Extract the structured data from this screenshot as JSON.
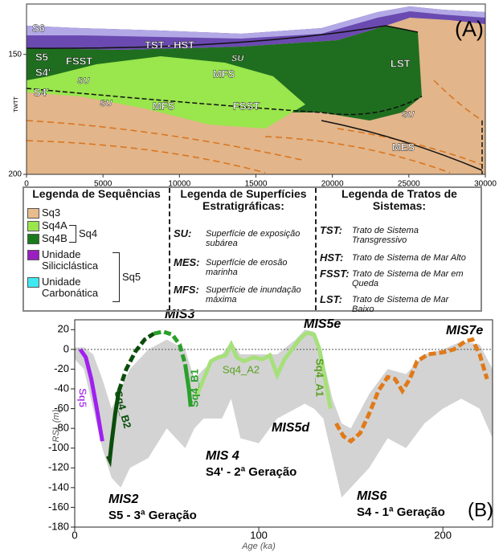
{
  "chart_data": [
    {
      "type": "section",
      "panel_label": "(A)",
      "y_label": "TWTT",
      "xlim": [
        0,
        30000
      ],
      "xticks": [
        0,
        5000,
        10000,
        15000,
        20000,
        25000,
        30000
      ],
      "ylim": [
        200,
        129
      ],
      "yticks": [
        150,
        200
      ],
      "annotations": [
        "S6",
        "TST - HST",
        "S5",
        "FSST",
        "SU",
        "S4'",
        "MFS",
        "SU",
        "LST",
        "S4'",
        "SU",
        "MFS",
        "FSST",
        "SU",
        "MES"
      ]
    },
    {
      "type": "line",
      "panel_label": "(B)",
      "x_label": "Age (ka)",
      "y_label": "RSL (m)",
      "xlim": [
        0,
        227
      ],
      "xticks": [
        0,
        100,
        200
      ],
      "ylim": [
        -180,
        30
      ],
      "yticks": [
        -180,
        -160,
        -140,
        -120,
        -100,
        -80,
        -60,
        -40,
        -20,
        0,
        20
      ],
      "zero_line": true,
      "envelope": {
        "color": "#d3d3d3",
        "x": [
          0,
          5,
          10,
          15,
          20,
          25,
          30,
          40,
          50,
          60,
          65,
          70,
          80,
          85,
          90,
          100,
          110,
          120,
          125,
          130,
          135,
          140,
          145,
          150,
          160,
          170,
          180,
          190,
          200,
          210,
          220,
          227
        ],
        "upper": [
          2,
          2,
          -5,
          -30,
          -60,
          -40,
          -20,
          0,
          10,
          0,
          -30,
          -20,
          -5,
          8,
          -5,
          -5,
          -5,
          10,
          20,
          18,
          -10,
          -50,
          -75,
          -80,
          -45,
          -20,
          -25,
          -5,
          0,
          8,
          5,
          -20
        ],
        "lower": [
          -10,
          -20,
          -60,
          -100,
          -130,
          -140,
          -120,
          -110,
          -80,
          -100,
          -80,
          -70,
          -70,
          -50,
          -90,
          -95,
          -70,
          -60,
          -55,
          -60,
          -70,
          -110,
          -150,
          -140,
          -120,
          -90,
          -100,
          -75,
          -60,
          -50,
          -60,
          -90
        ]
      },
      "series": [
        {
          "name": "Sq5",
          "color": "#a020f0",
          "dashed": false,
          "x": [
            3,
            6,
            9,
            12,
            15
          ],
          "values": [
            0,
            -8,
            -30,
            -60,
            -93
          ]
        },
        {
          "name": "Sq4_B2",
          "color": "#0b4d0b",
          "dashed": false,
          "x": [
            18,
            19,
            20,
            22,
            24
          ],
          "values": [
            -108,
            -112,
            -95,
            -65,
            -42
          ]
        },
        {
          "color": "#0b4d0b",
          "dashed": true,
          "x": [
            24,
            28,
            33,
            38,
            43
          ],
          "values": [
            -42,
            -20,
            -2,
            10,
            16
          ]
        },
        {
          "color": "#2aa02a",
          "dashed": true,
          "x": [
            43,
            48,
            53,
            57,
            60
          ],
          "values": [
            16,
            18,
            15,
            5,
            -15
          ]
        },
        {
          "name": "Sq4_B1",
          "color": "#2aa02a",
          "dashed": false,
          "x": [
            60,
            62,
            63
          ],
          "values": [
            -15,
            -40,
            -58
          ]
        },
        {
          "name": "Sq4_A2",
          "color": "#a6e07a",
          "dashed": false,
          "x": [
            66,
            70,
            74,
            78,
            82,
            85,
            88,
            92,
            97,
            102,
            106,
            110,
            114,
            118,
            122,
            126
          ],
          "values": [
            -48,
            -30,
            -12,
            -8,
            -6,
            5,
            -8,
            -12,
            -8,
            -10,
            -6,
            -26,
            -10,
            0,
            10,
            17
          ]
        },
        {
          "name": "Sq4_A1",
          "color": "#a6e07a",
          "dashed": false,
          "x": [
            126,
            130,
            133,
            136,
            139
          ],
          "values": [
            17,
            15,
            0,
            -30,
            -60
          ]
        },
        {
          "color": "#e07a1a",
          "dashed": true,
          "x": [
            142,
            146,
            150,
            155,
            160,
            165,
            170,
            174,
            178,
            182,
            186,
            192,
            200,
            206,
            212,
            216,
            220,
            224
          ],
          "values": [
            -75,
            -88,
            -93,
            -85,
            -65,
            -42,
            -28,
            -30,
            -42,
            -30,
            -12,
            -5,
            -3,
            0,
            8,
            10,
            -5,
            -30
          ]
        }
      ],
      "annotations": [
        "MIS3",
        "MIS5e",
        "MIS7e",
        "MIS5d",
        "MIS 4",
        "S4' - 2ª Geração",
        "MIS2",
        "S5 - 3ª Geração",
        "MIS6",
        "S4 - 1ª Geração"
      ]
    }
  ],
  "legend": {
    "sequences": {
      "title": "Legenda de Sequências",
      "items": [
        {
          "label": "Sq3",
          "color": "#e8bc8e"
        },
        {
          "label": "Sq4A",
          "color": "#99e64d"
        },
        {
          "label": "Sq4B",
          "color": "#1a7a1a"
        },
        {
          "label": "Unidade Siliciclástica",
          "color": "#9b1fc0"
        },
        {
          "label": "Unidade Carbonática",
          "color": "#40e8f0"
        }
      ],
      "groups": [
        "Sq4",
        "Sq5"
      ]
    },
    "surfaces": {
      "title": "Legenda de Superfícies Estratigráficas:",
      "items": [
        {
          "term": "SU:",
          "text": "Superfície de exposição subárea"
        },
        {
          "term": "MES:",
          "text": "Superfície de erosão marinha"
        },
        {
          "term": "MFS:",
          "text": "Superfície de inundação máxima"
        }
      ]
    },
    "tracts": {
      "title": "Legenda de Tratos de Sistemas:",
      "items": [
        {
          "term": "TST:",
          "text": "Trato de Sistema Transgressivo"
        },
        {
          "term": "HST:",
          "text": "Trato de Sistema de Mar Alto"
        },
        {
          "term": "FSST:",
          "text": "Trato de Sistema de Mar em Queda"
        },
        {
          "term": "LST:",
          "text": "Trato de Sistema de Mar Baixo"
        }
      ]
    }
  }
}
